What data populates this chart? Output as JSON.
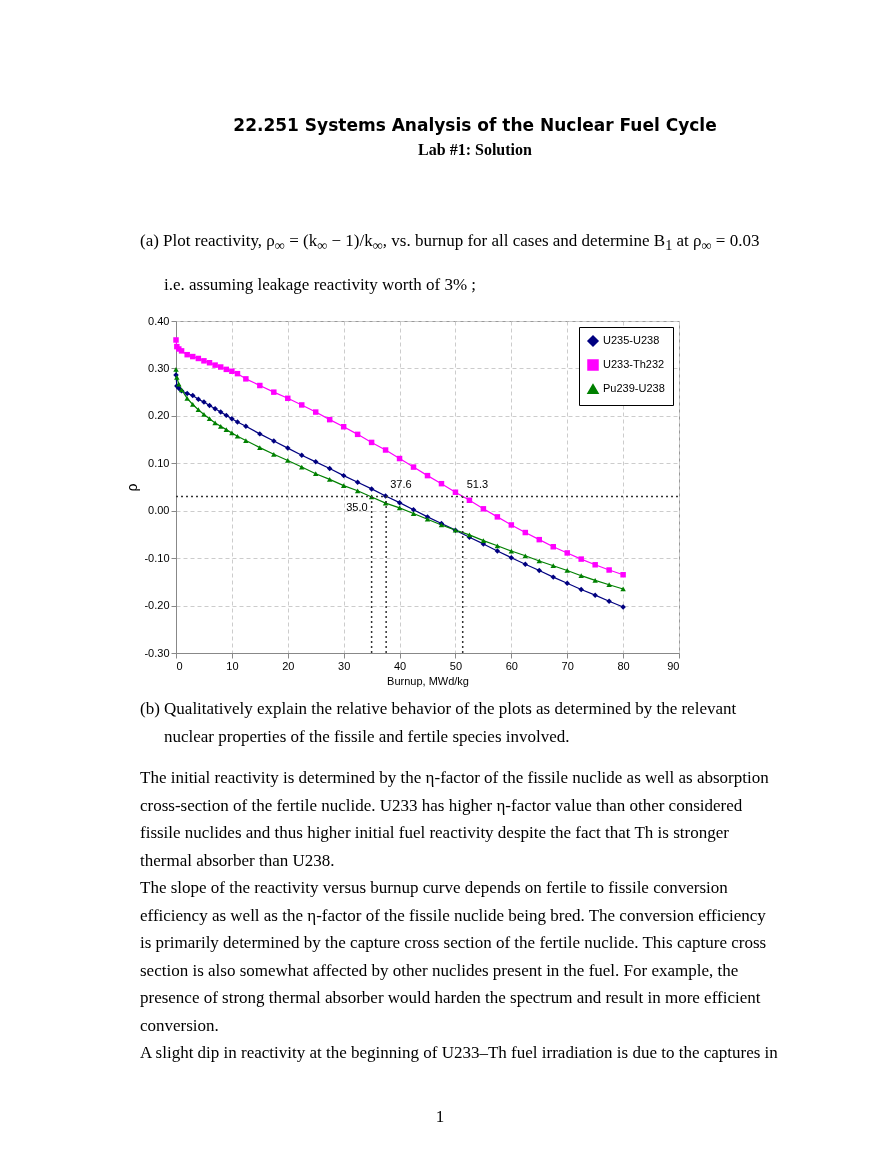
{
  "chart_data": {
    "type": "line",
    "title": "22.251 Systems Analysis of the Nuclear Fuel Cycle",
    "subtitle": "Lab #1: Solution",
    "xlabel": "Burnup, MWd/kg",
    "ylabel": "ρ",
    "x": [
      0,
      0.15,
      0.5,
      1,
      2,
      3,
      4,
      5,
      6,
      7,
      8,
      9,
      10,
      11,
      12.5,
      15,
      17.5,
      20,
      22.5,
      25,
      27.5,
      30,
      32.5,
      35,
      37.5,
      40,
      42.5,
      45,
      47.5,
      50,
      52.5,
      55,
      57.5,
      60,
      62.5,
      65,
      67.5,
      70,
      72.5,
      75,
      77.5,
      80
    ],
    "series": [
      {
        "name": "U235-U238",
        "color": "#000080",
        "marker": "diamond",
        "values": [
          0.286,
          0.263,
          0.258,
          0.253,
          0.247,
          0.243,
          0.235,
          0.229,
          0.222,
          0.215,
          0.208,
          0.201,
          0.194,
          0.187,
          0.178,
          0.162,
          0.147,
          0.132,
          0.117,
          0.103,
          0.089,
          0.074,
          0.06,
          0.046,
          0.031,
          0.017,
          0.002,
          -0.013,
          -0.027,
          -0.041,
          -0.056,
          -0.07,
          -0.085,
          -0.099,
          -0.113,
          -0.126,
          -0.14,
          -0.153,
          -0.166,
          -0.178,
          -0.191,
          -0.203
        ]
      },
      {
        "name": "U233-Th232",
        "color": "#ff00ff",
        "marker": "square",
        "values": [
          0.36,
          0.346,
          0.341,
          0.337,
          0.329,
          0.325,
          0.321,
          0.316,
          0.312,
          0.307,
          0.303,
          0.298,
          0.294,
          0.289,
          0.278,
          0.264,
          0.25,
          0.237,
          0.223,
          0.208,
          0.192,
          0.177,
          0.161,
          0.144,
          0.128,
          0.11,
          0.092,
          0.074,
          0.057,
          0.039,
          0.022,
          0.004,
          -0.013,
          -0.03,
          -0.046,
          -0.061,
          -0.076,
          -0.089,
          -0.102,
          -0.114,
          -0.125,
          -0.135
        ]
      },
      {
        "name": "Pu239-U238",
        "color": "#008000",
        "marker": "triangle",
        "values": [
          0.298,
          0.281,
          0.267,
          0.255,
          0.237,
          0.224,
          0.213,
          0.203,
          0.194,
          0.185,
          0.178,
          0.171,
          0.164,
          0.157,
          0.148,
          0.133,
          0.119,
          0.106,
          0.092,
          0.078,
          0.066,
          0.053,
          0.042,
          0.029,
          0.016,
          0.006,
          -0.006,
          -0.018,
          -0.03,
          -0.041,
          -0.051,
          -0.063,
          -0.074,
          -0.085,
          -0.095,
          -0.106,
          -0.116,
          -0.126,
          -0.137,
          -0.147,
          -0.156,
          -0.165
        ]
      }
    ],
    "xlim": [
      0,
      90
    ],
    "xticks": [
      0,
      10,
      20,
      30,
      40,
      50,
      60,
      70,
      80,
      90
    ],
    "ylim": [
      -0.3,
      0.4
    ],
    "yticks": [
      {
        "value": -0.3,
        "label": "-0.30"
      },
      {
        "value": -0.2,
        "label": "-0.20"
      },
      {
        "value": -0.1,
        "label": "-0.10"
      },
      {
        "value": 0,
        "label": "0.00"
      },
      {
        "value": 0.1,
        "label": "0.10"
      },
      {
        "value": 0.2,
        "label": "0.20"
      },
      {
        "value": 0.3,
        "label": "0.30"
      },
      {
        "value": 0.4,
        "label": "0.40"
      }
    ],
    "ref_lines": [
      {
        "axis": "y",
        "value": 0.03,
        "label": null,
        "line_style": "dotted"
      },
      {
        "axis": "x",
        "value": 35.0,
        "label": "35.0",
        "line_style": "dotted"
      },
      {
        "axis": "x",
        "value": 37.6,
        "label": "37.6",
        "line_style": "dotted"
      },
      {
        "axis": "x",
        "value": 51.3,
        "label": "51.3",
        "line_style": "dotted"
      }
    ],
    "grid": true,
    "legend": "top right",
    "line_style": "solid",
    "annotations": [
      "(a) Plot reactivity, ρ$_{∞}$ = (k$_{∞}$ − 1)/k$_{∞}$, vs. burnup for all cases and determine B$_{1}$ at ρ$_{∞}$ = 0.03 i.e. assuming leakage reactivity worth of 3% ;",
      "(b) Qualitatively explain the relative behavior of the plots as determined by the relevant nuclear properties of the fissile and fertile species involved.",
      "The initial reactivity is determined by the η-factor of the fissile nuclide as well as absorption cross-section of the fertile nuclide. U233 has higher η-factor value than other considered fissile nuclides and thus higher initial fuel reactivity despite the fact that Th is stronger thermal absorber than U238.",
      "The slope of the reactivity versus burnup curve depends on fertile to fissile conversion efficiency as well as the η-factor of the fissile nuclide being bred. The conversion efficiency is primarily determined by the capture cross section of the fertile nuclide. This capture cross section is also somewhat affected by other nuclides present in the fuel. For example, the presence of strong thermal absorber would harden the spectrum and result in more efficient conversion.",
      "A slight dip in reactivity at the beginning of U233–Th fuel irradiation is due to the captures in",
      "1"
    ]
  }
}
